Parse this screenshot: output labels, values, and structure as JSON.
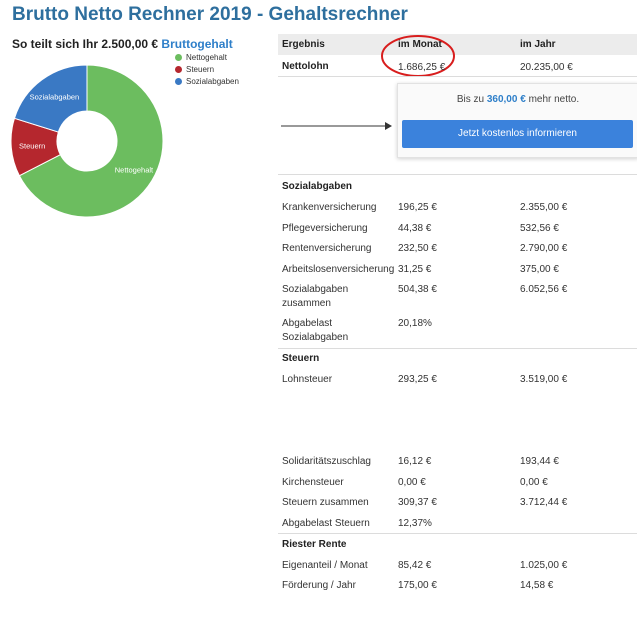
{
  "page": {
    "title": "Brutto Netto Rechner 2019 - Gehaltsrechner",
    "subtitle_prefix": "So teilt sich Ihr 2.500,00 €",
    "subtitle_highlight": "Bruttogehalt"
  },
  "chart_data": {
    "type": "pie",
    "categories": [
      "Nettogehalt",
      "Steuern",
      "Sozialabgaben"
    ],
    "values": [
      1686.25,
      309.37,
      504.38
    ],
    "legend_position": "top-right",
    "colors": [
      "#6cbd5f",
      "#b5272e",
      "#3a79c4"
    ],
    "slice_labels": [
      "Nettogehalt",
      "Steuern",
      "Sozialabgaben"
    ]
  },
  "table": {
    "headers": {
      "col0": "Ergebnis",
      "col1": "im Monat",
      "col2": "im Jahr"
    },
    "netto": {
      "label": "Nettolohn",
      "monat": "1.686,25 €",
      "jahr": "20.235,00 €"
    },
    "promo": {
      "text_pre": "Bis zu",
      "amount": "360,00 €",
      "text_post": "mehr netto.",
      "button": "Jetzt kostenlos informieren"
    },
    "sozial": {
      "title": "Sozialabgaben",
      "rows": [
        {
          "label": "Krankenversicherung",
          "monat": "196,25 €",
          "jahr": "2.355,00 €"
        },
        {
          "label": "Pflegeversicherung",
          "monat": "44,38 €",
          "jahr": "532,56 €"
        },
        {
          "label": "Rentenversicherung",
          "monat": "232,50 €",
          "jahr": "2.790,00 €"
        },
        {
          "label": "Arbeitslosenversicherung",
          "monat": "31,25 €",
          "jahr": "375,00 €"
        },
        {
          "label": "Sozialabgaben",
          "label2": "zusammen",
          "monat": "504,38 €",
          "jahr": "6.052,56 €"
        },
        {
          "label": "Abgabelast",
          "label2": "Sozialabgaben",
          "monat": "20,18%",
          "jahr": ""
        }
      ]
    },
    "steuern": {
      "title": "Steuern",
      "rows": [
        {
          "label": "Lohnsteuer",
          "monat": "293,25 €",
          "jahr": "3.519,00 €"
        },
        {
          "label": "Solidaritätszuschlag",
          "monat": "16,12 €",
          "jahr": "193,44 €"
        },
        {
          "label": "Kirchensteuer",
          "monat": "0,00 €",
          "jahr": "0,00 €"
        },
        {
          "label": "Steuern zusammen",
          "monat": "309,37 €",
          "jahr": "3.712,44 €"
        },
        {
          "label": "Abgabelast Steuern",
          "monat": "12,37%",
          "jahr": ""
        }
      ]
    },
    "riester": {
      "title": "Riester Rente",
      "rows": [
        {
          "label": "Eigenanteil / Monat",
          "monat": "85,42 €",
          "jahr": "1.025,00 €"
        },
        {
          "label": "Förderung / Jahr",
          "monat": "175,00 €",
          "jahr": "14,58 €"
        }
      ]
    }
  }
}
